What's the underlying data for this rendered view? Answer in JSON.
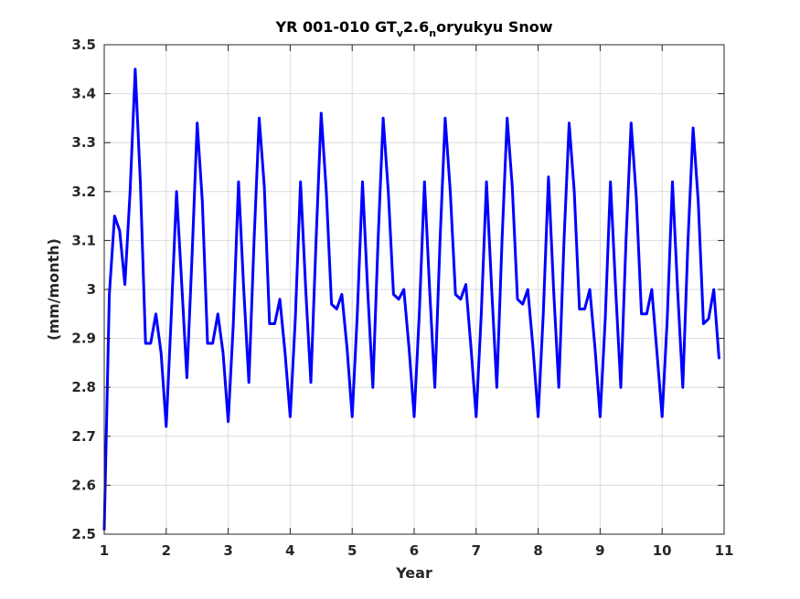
{
  "chart_data": {
    "type": "line",
    "title": {
      "part1": "YR 001-010 GT",
      "sub1": "v",
      "part2": "2.6",
      "sub2": "n",
      "part3": "oryukyu Snow"
    },
    "xlabel": "Year",
    "ylabel": "(mm/month)",
    "xlim": [
      1,
      11
    ],
    "ylim": [
      2.5,
      3.5
    ],
    "xticks": [
      "1",
      "2",
      "3",
      "4",
      "5",
      "6",
      "7",
      "8",
      "9",
      "10",
      "11"
    ],
    "yticks": [
      "2.5",
      "2.6",
      "2.7",
      "2.8",
      "2.9",
      "3",
      "3.1",
      "3.2",
      "3.3",
      "3.4",
      "3.5"
    ],
    "grid": true,
    "series": [
      {
        "color": "#0000ff",
        "x": [
          1.0,
          1.0833,
          1.1667,
          1.25,
          1.3333,
          1.4167,
          1.5,
          1.5833,
          1.6667,
          1.75,
          1.8333,
          1.9167,
          2.0,
          2.0833,
          2.1667,
          2.25,
          2.3333,
          2.4167,
          2.5,
          2.5833,
          2.6667,
          2.75,
          2.8333,
          2.9167,
          3.0,
          3.0833,
          3.1667,
          3.25,
          3.3333,
          3.4167,
          3.5,
          3.5833,
          3.6667,
          3.75,
          3.8333,
          3.9167,
          4.0,
          4.0833,
          4.1667,
          4.25,
          4.3333,
          4.4167,
          4.5,
          4.5833,
          4.6667,
          4.75,
          4.8333,
          4.9167,
          5.0,
          5.0833,
          5.1667,
          5.25,
          5.3333,
          5.4167,
          5.5,
          5.5833,
          5.6667,
          5.75,
          5.8333,
          5.9167,
          6.0,
          6.0833,
          6.1667,
          6.25,
          6.3333,
          6.4167,
          6.5,
          6.5833,
          6.6667,
          6.75,
          6.8333,
          6.9167,
          7.0,
          7.0833,
          7.1667,
          7.25,
          7.3333,
          7.4167,
          7.5,
          7.5833,
          7.6667,
          7.75,
          7.8333,
          7.9167,
          8.0,
          8.0833,
          8.1667,
          8.25,
          8.3333,
          8.4167,
          8.5,
          8.5833,
          8.6667,
          8.75,
          8.8333,
          8.9167,
          9.0,
          9.0833,
          9.1667,
          9.25,
          9.3333,
          9.4167,
          9.5,
          9.5833,
          9.6667,
          9.75,
          9.8333,
          9.9167,
          10.0,
          10.0833,
          10.1667,
          10.25,
          10.3333,
          10.4167,
          10.5,
          10.5833,
          10.6667,
          10.75,
          10.8333,
          10.9167
        ],
        "values": [
          2.51,
          2.99,
          3.15,
          3.12,
          3.01,
          3.2,
          3.45,
          3.22,
          2.89,
          2.89,
          2.95,
          2.87,
          2.72,
          2.95,
          3.2,
          3.01,
          2.82,
          3.07,
          3.34,
          3.18,
          2.89,
          2.89,
          2.95,
          2.87,
          2.73,
          2.93,
          3.22,
          3.0,
          2.81,
          3.1,
          3.35,
          3.21,
          2.93,
          2.93,
          2.98,
          2.87,
          2.74,
          2.94,
          3.22,
          3.0,
          2.81,
          3.1,
          3.36,
          3.2,
          2.97,
          2.96,
          2.99,
          2.88,
          2.74,
          2.95,
          3.22,
          3.0,
          2.8,
          3.1,
          3.35,
          3.2,
          2.99,
          2.98,
          3.0,
          2.88,
          2.74,
          2.95,
          3.22,
          3.0,
          2.8,
          3.1,
          3.35,
          3.2,
          2.99,
          2.98,
          3.01,
          2.88,
          2.74,
          2.95,
          3.22,
          3.0,
          2.8,
          3.1,
          3.35,
          3.21,
          2.98,
          2.97,
          3.0,
          2.88,
          2.74,
          2.95,
          3.23,
          3.0,
          2.8,
          3.1,
          3.34,
          3.2,
          2.96,
          2.96,
          3.0,
          2.88,
          2.74,
          2.94,
          3.22,
          3.0,
          2.8,
          3.1,
          3.34,
          3.19,
          2.95,
          2.95,
          3.0,
          2.87,
          2.74,
          2.94,
          3.22,
          3.0,
          2.8,
          3.1,
          3.33,
          3.18,
          2.93,
          2.94,
          3.0,
          2.86
        ]
      }
    ]
  }
}
